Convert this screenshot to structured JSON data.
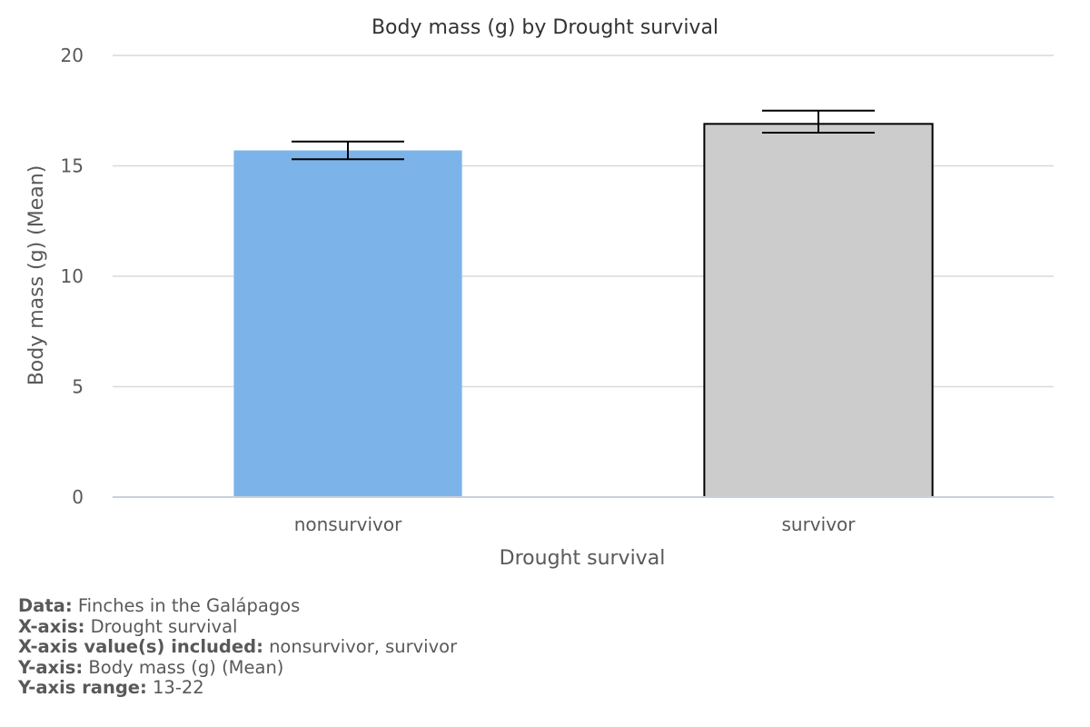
{
  "chart_data": {
    "type": "bar",
    "title": "Body mass (g) by Drought survival",
    "xlabel": "Drought survival",
    "ylabel": "Body mass (g) (Mean)",
    "categories": [
      "nonsurvivor",
      "survivor"
    ],
    "values": [
      15.7,
      16.9
    ],
    "error_bars": [
      {
        "low": 15.3,
        "high": 16.1
      },
      {
        "low": 16.5,
        "high": 17.5
      }
    ],
    "bar_colors": [
      "#7cb4ea",
      "#cccccc"
    ],
    "bar_outline": [
      false,
      true
    ],
    "ylim": [
      0,
      20
    ],
    "yticks": [
      0,
      5,
      10,
      15,
      20
    ],
    "grid": true,
    "legend": "none"
  },
  "notes": {
    "data_label": "Data:",
    "data_value": "Finches in the Galápagos",
    "xaxis_label": "X-axis:",
    "xaxis_value": "Drought survival",
    "xvalues_label": "X-axis value(s) included:",
    "xvalues_value": "nonsurvivor, survivor",
    "yaxis_label": "Y-axis:",
    "yaxis_value": "Body mass (g) (Mean)",
    "yrange_label": "Y-axis range:",
    "yrange_value": "13-22"
  },
  "colors": {
    "grid": "#d9d9d9",
    "axis": "#c8d0da",
    "text": "#595959",
    "title": "#333333",
    "outline": "#000000",
    "error_bar": "#000000"
  }
}
